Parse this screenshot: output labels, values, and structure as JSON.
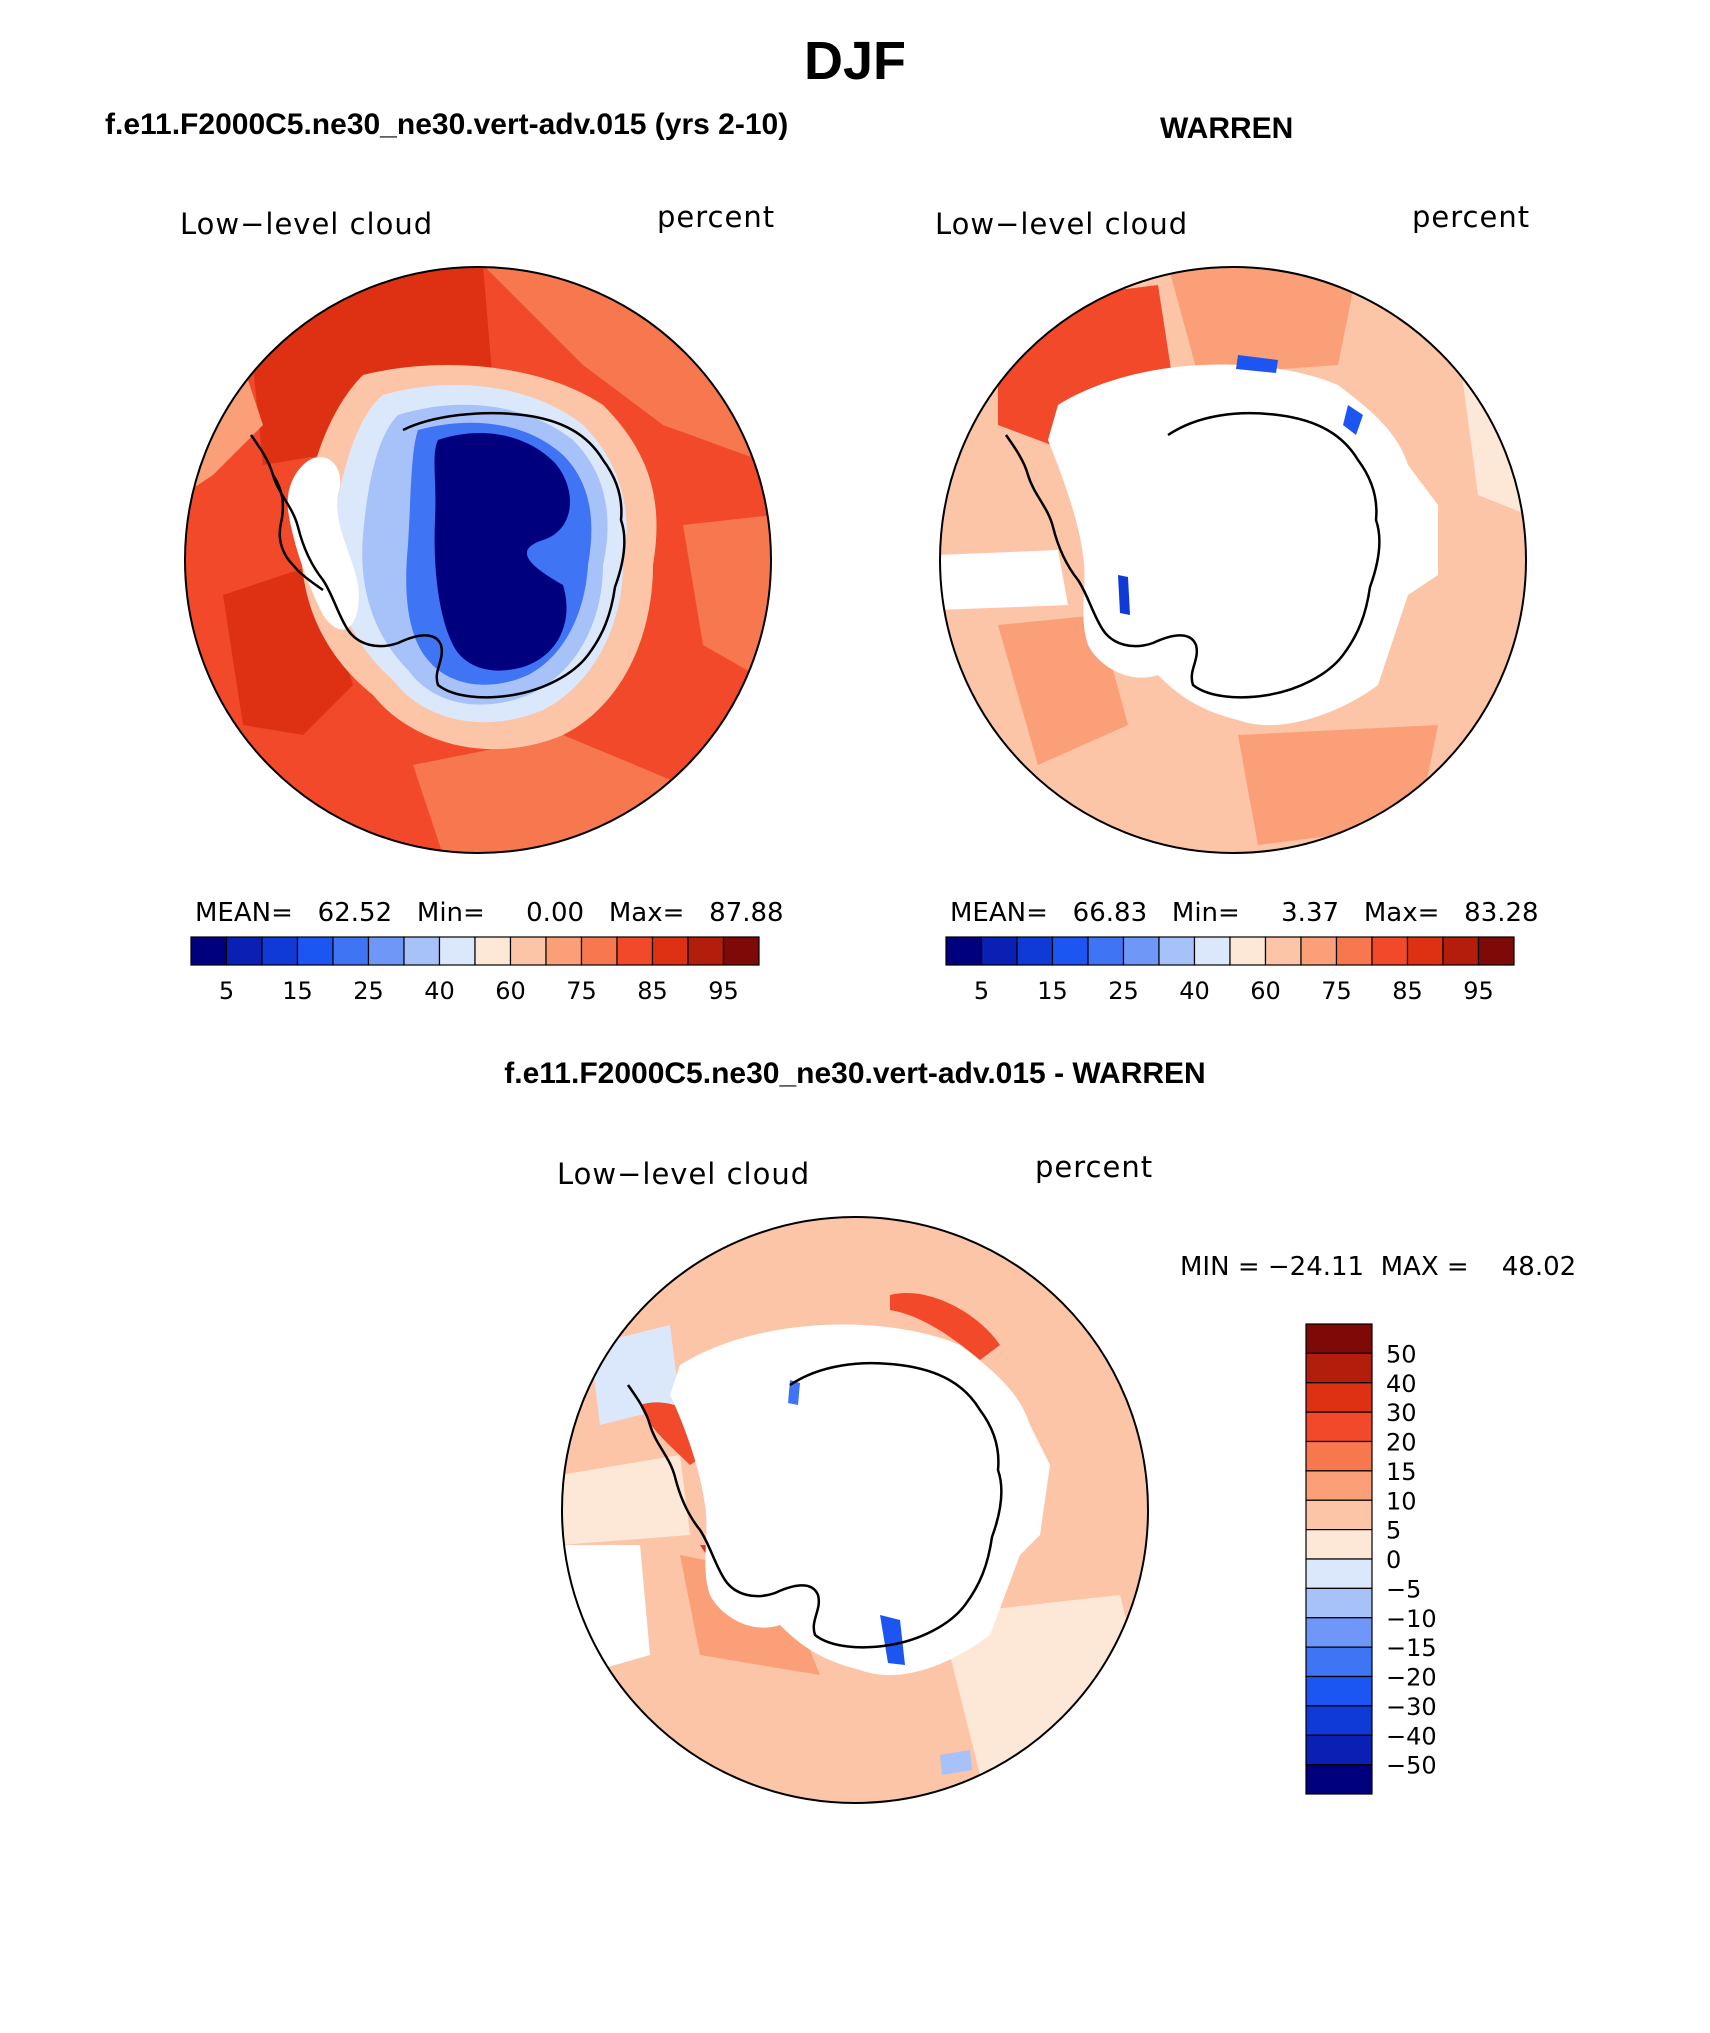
{
  "title": "DJF",
  "panels": {
    "left": {
      "case": "f.e11.F2000C5.ne30_ne30.vert-adv.015 (yrs 2-10)",
      "variable": "Low−level cloud",
      "units": "percent",
      "stats": "MEAN=   62.52   Min=     0.00   Max=   87.88"
    },
    "right": {
      "case": "WARREN",
      "variable": "Low−level cloud",
      "units": "percent",
      "stats": "MEAN=   66.83   Min=     3.37   Max=   83.28"
    },
    "diff": {
      "case": "f.e11.F2000C5.ne30_ne30.vert-adv.015 - WARREN",
      "variable": "Low−level cloud",
      "units": "percent",
      "stats": "MIN = −24.11  MAX =    48.02"
    }
  },
  "colors": {
    "seq": [
      "#00007f",
      "#0a1fb3",
      "#0f3ad6",
      "#1d55f2",
      "#3f74f5",
      "#6e97f7",
      "#a7c2f8",
      "#dbe8fb",
      "#fde8d8",
      "#fcc5a8",
      "#fa9f78",
      "#f7774e",
      "#f2492a",
      "#de3113",
      "#b21d0c",
      "#7d0a06"
    ],
    "diff": [
      "#00007f",
      "#0a1fb3",
      "#0f3ad6",
      "#1d55f2",
      "#3f74f5",
      "#6e97f7",
      "#a7c2f8",
      "#dbe8fb",
      "#fde8d8",
      "#fcc5a8",
      "#fa9f78",
      "#f7774e",
      "#f2492a",
      "#de3113",
      "#b21d0c",
      "#7d0a06"
    ],
    "land": "#ffffff",
    "coast": "#000000"
  },
  "chart_data": [
    {
      "type": "heatmap",
      "title": "Low−level cloud",
      "units": "percent",
      "projection": "south polar stereographic",
      "colorbar_ticks": [
        "5",
        "15",
        "25",
        "40",
        "60",
        "75",
        "85",
        "95"
      ],
      "colorbar_levels": [
        5,
        10,
        15,
        20,
        25,
        30,
        40,
        50,
        60,
        70,
        75,
        80,
        85,
        90,
        95
      ],
      "mean": 62.52,
      "min": 0.0,
      "max": 87.88
    },
    {
      "type": "heatmap",
      "title": "Low−level cloud",
      "units": "percent",
      "projection": "south polar stereographic",
      "colorbar_ticks": [
        "5",
        "15",
        "25",
        "40",
        "60",
        "75",
        "85",
        "95"
      ],
      "colorbar_levels": [
        5,
        10,
        15,
        20,
        25,
        30,
        40,
        50,
        60,
        70,
        75,
        80,
        85,
        90,
        95
      ],
      "mean": 66.83,
      "min": 3.37,
      "max": 83.28
    },
    {
      "type": "heatmap",
      "title": "Low−level cloud",
      "units": "percent",
      "projection": "south polar stereographic",
      "colorbar_ticks": [
        "50",
        "40",
        "30",
        "20",
        "15",
        "10",
        "5",
        "0",
        "−5",
        "−10",
        "−15",
        "−20",
        "−30",
        "−40",
        "−50"
      ],
      "min": -24.11,
      "max": 48.02
    }
  ]
}
